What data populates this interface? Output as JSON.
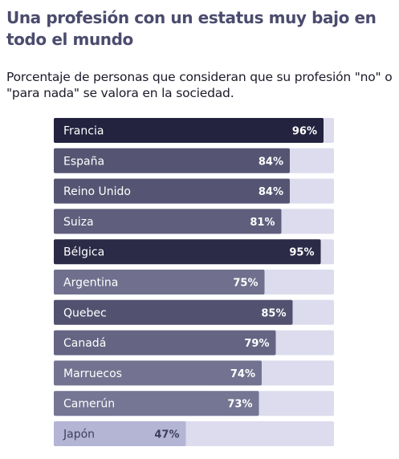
{
  "header": {
    "title": "Una profesión con un estatus muy bajo en todo el mundo",
    "subtitle": "Porcentaje de personas que consideran que su profesión \"no\" o \"para nada\" se valora en la sociedad."
  },
  "chart_data": {
    "type": "bar",
    "orientation": "horizontal",
    "title": "Una profesión con un estatus muy bajo en todo el mundo",
    "subtitle": "Porcentaje de personas que consideran que su profesión \"no\" o \"para nada\" se valora en la sociedad.",
    "categories": [
      "Francia",
      "España",
      "Reino Unido",
      "Suiza",
      "Bélgica",
      "Argentina",
      "Quebec",
      "Canadá",
      "Marruecos",
      "Camerún",
      "Japón"
    ],
    "values": [
      96,
      84,
      84,
      81,
      95,
      75,
      85,
      79,
      74,
      73,
      47
    ],
    "value_labels": [
      "96%",
      "84%",
      "84%",
      "81%",
      "95%",
      "75%",
      "85%",
      "79%",
      "74%",
      "73%",
      "47%"
    ],
    "xlim": [
      0,
      100
    ],
    "grid": false,
    "legend": "none",
    "colors": {
      "track": "#dcdcee",
      "fill_darkest": "#23223f",
      "fill_lightest": "#b4b5d5",
      "label_light": "#ffffff",
      "label_dark": "#3e3e5e"
    }
  }
}
